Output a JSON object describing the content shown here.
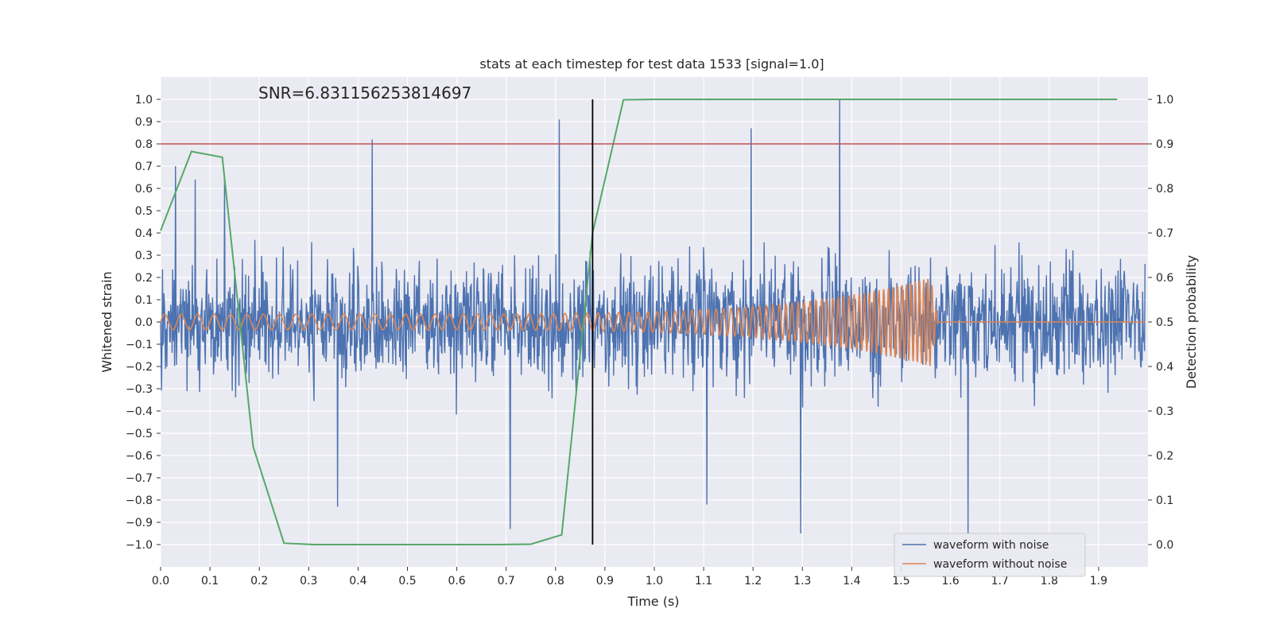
{
  "chart_data": {
    "type": "line",
    "title": "stats at each timestep for test data 1533 [signal=1.0]",
    "annotation": "SNR=6.831156253814697",
    "xlabel": "Time (s)",
    "ylabel_left": "Whitened strain",
    "ylabel_right": "Detection probability",
    "xlim": [
      0.0,
      2.0
    ],
    "ylim_left": [
      -1.1,
      1.1
    ],
    "ylim_right": [
      -0.05,
      1.05
    ],
    "x_ticks": [
      "0.0",
      "0.1",
      "0.2",
      "0.3",
      "0.4",
      "0.5",
      "0.6",
      "0.7",
      "0.8",
      "0.9",
      "1.0",
      "1.1",
      "1.2",
      "1.3",
      "1.4",
      "1.5",
      "1.6",
      "1.7",
      "1.8",
      "1.9"
    ],
    "y_left_ticks": [
      "1.0",
      "0.9",
      "0.8",
      "0.7",
      "0.6",
      "0.5",
      "0.4",
      "0.3",
      "0.2",
      "0.1",
      "0.0",
      "−0.1",
      "−0.2",
      "−0.3",
      "−0.4",
      "−0.5",
      "−0.6",
      "−0.7",
      "−0.8",
      "−0.9",
      "−1.0"
    ],
    "y_right_ticks": [
      "1.0",
      "0.9",
      "0.8",
      "0.7",
      "0.6",
      "0.5",
      "0.4",
      "0.3",
      "0.2",
      "0.1",
      "0.0"
    ],
    "threshold": {
      "axis": "left",
      "value": 0.8,
      "color": "#c44e52"
    },
    "marker_time": {
      "x": 0.875,
      "y_from": -1.0,
      "y_to": 1.0,
      "color": "#000000"
    },
    "series": [
      {
        "name": "waveform with noise",
        "axis": "left",
        "color": "#4c72b0",
        "description": "whitened strain with noise, dense, amplitude mostly within ±0.6",
        "samples": 2048,
        "spikes": [
          {
            "x": 0.03,
            "y": 0.7
          },
          {
            "x": 0.07,
            "y": 0.64
          },
          {
            "x": 0.13,
            "y": 0.65
          },
          {
            "x": 0.43,
            "y": 0.82
          },
          {
            "x": 0.81,
            "y": 0.91
          },
          {
            "x": 1.2,
            "y": 0.87
          },
          {
            "x": 1.38,
            "y": 1.0
          },
          {
            "x": 0.71,
            "y": -0.93
          },
          {
            "x": 1.3,
            "y": -0.95
          },
          {
            "x": 1.64,
            "y": -0.95
          },
          {
            "x": 0.36,
            "y": -0.83
          },
          {
            "x": 1.11,
            "y": -0.82
          }
        ]
      },
      {
        "name": "waveform without noise",
        "axis": "left",
        "color": "#dd8452",
        "description": "chirp signal rising in frequency and amplitude until merger near 1.56 s",
        "amplitude_start": 0.035,
        "amplitude_peak": 0.2,
        "freq_start_hz": 30,
        "freq_end_hz": 120,
        "t_start": 0.0,
        "t_merger": 1.56,
        "t_ringdown_end": 1.575
      },
      {
        "name": "detection probability",
        "axis": "right",
        "color": "#55a868",
        "x": [
          0.0,
          0.0625,
          0.125,
          0.1875,
          0.25,
          0.3125,
          0.375,
          0.4375,
          0.5,
          0.5625,
          0.625,
          0.6875,
          0.75,
          0.8125,
          0.875,
          0.9375,
          1.0,
          1.0625,
          1.125,
          1.1875,
          1.25,
          1.3125,
          1.375,
          1.4375,
          1.5,
          1.5625,
          1.625,
          1.6875,
          1.75,
          1.8125,
          1.875,
          1.9375
        ],
        "y": [
          0.705,
          0.883,
          0.87,
          0.22,
          0.003,
          0.0,
          0.0,
          0.0,
          0.0,
          0.0,
          0.0,
          0.0,
          0.001,
          0.022,
          0.7,
          0.999,
          1.0,
          1.0,
          1.0,
          1.0,
          1.0,
          1.0,
          1.0,
          1.0,
          1.0,
          1.0,
          1.0,
          1.0,
          1.0,
          1.0,
          1.0,
          1.0
        ]
      }
    ],
    "legend": {
      "position": "lower-right",
      "entries": [
        {
          "label": "waveform with noise",
          "color": "#4c72b0"
        },
        {
          "label": "waveform without noise",
          "color": "#dd8452"
        }
      ]
    },
    "background_color": "#eaeaf2",
    "grid": true
  }
}
